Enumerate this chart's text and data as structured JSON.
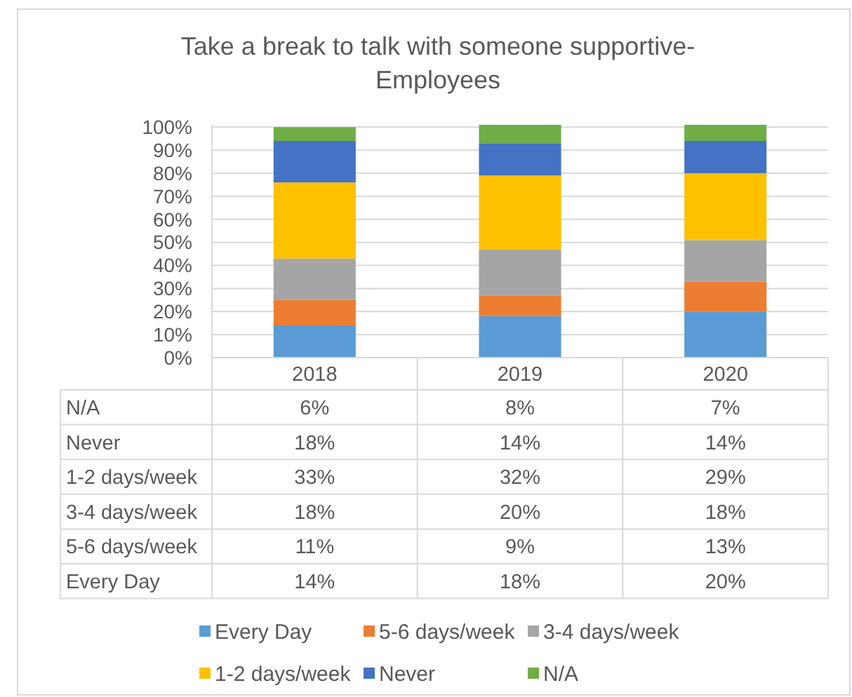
{
  "chart_data": {
    "type": "bar",
    "title": "Take a break to talk with someone supportive-\nEmployees",
    "categories": [
      "2018",
      "2019",
      "2020"
    ],
    "stacked": true,
    "series": [
      {
        "name": "Every Day",
        "color": "#5b9bd5",
        "values": [
          14,
          18,
          20
        ],
        "value_labels": [
          "14%",
          "18%",
          "20%"
        ]
      },
      {
        "name": "5-6 days/week",
        "color": "#ed7d31",
        "values": [
          11,
          9,
          13
        ],
        "value_labels": [
          "11%",
          "9%",
          "13%"
        ]
      },
      {
        "name": "3-4 days/week",
        "color": "#a5a5a5",
        "values": [
          18,
          20,
          18
        ],
        "value_labels": [
          "18%",
          "20%",
          "18%"
        ]
      },
      {
        "name": "1-2 days/week",
        "color": "#ffc000",
        "values": [
          33,
          32,
          29
        ],
        "value_labels": [
          "33%",
          "32%",
          "29%"
        ]
      },
      {
        "name": "Never",
        "color": "#4472c4",
        "values": [
          18,
          14,
          14
        ],
        "value_labels": [
          "18%",
          "14%",
          "14%"
        ]
      },
      {
        "name": "N/A",
        "color": "#70ad47",
        "values": [
          6,
          8,
          7
        ],
        "value_labels": [
          "6%",
          "8%",
          "7%"
        ]
      }
    ],
    "ylim": [
      0,
      101
    ],
    "yticks": [
      {
        "value": 0,
        "label": "0%"
      },
      {
        "value": 10,
        "label": "10%"
      },
      {
        "value": 20,
        "label": "20%"
      },
      {
        "value": 30,
        "label": "30%"
      },
      {
        "value": 40,
        "label": "40%"
      },
      {
        "value": 50,
        "label": "50%"
      },
      {
        "value": 60,
        "label": "60%"
      },
      {
        "value": 70,
        "label": "70%"
      },
      {
        "value": 80,
        "label": "80%"
      },
      {
        "value": 90,
        "label": "90%"
      },
      {
        "value": 100,
        "label": "100%"
      }
    ],
    "grid": "y",
    "legend": "bottom"
  }
}
